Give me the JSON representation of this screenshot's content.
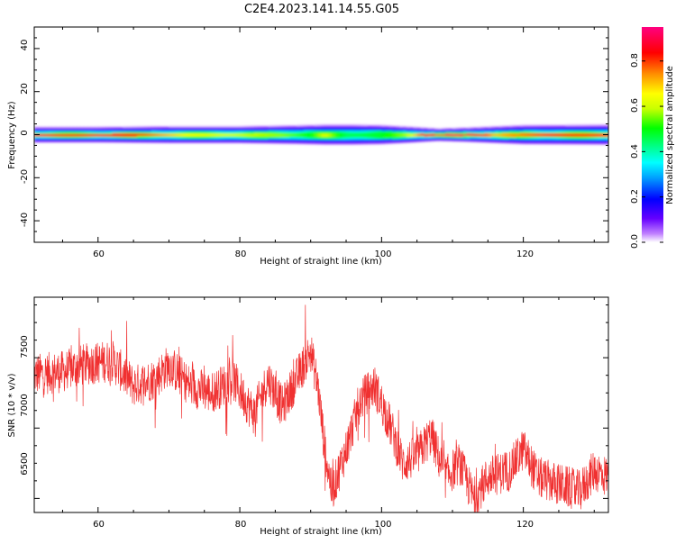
{
  "title": "C2E4.2023.141.14.55.G05",
  "colorbar": {
    "label": "Normalized spectral amplitude",
    "ticks": [
      "0.0",
      "0.2",
      "0.4",
      "0.6",
      "0.8"
    ],
    "tick_values": [
      0.0,
      0.2,
      0.4,
      0.6,
      0.8
    ],
    "range": [
      0,
      0.95
    ]
  },
  "chart_data": [
    {
      "type": "heatmap",
      "xlabel": "Height of straight line (km)",
      "ylabel": "Frequency (Hz)",
      "xlim": [
        51,
        132
      ],
      "ylim": [
        -50,
        50
      ],
      "xticks": [
        60,
        80,
        100,
        120
      ],
      "xtick_labels": [
        "60",
        "80",
        "100",
        "120"
      ],
      "yticks": [
        -40,
        -20,
        0,
        20,
        40
      ],
      "ytick_labels": [
        "-40",
        "-20",
        "0",
        "20",
        "40"
      ],
      "band": {
        "center_hz": 0,
        "half_width_hz": [
          [
            51,
            3.5
          ],
          [
            60,
            3.5
          ],
          [
            70,
            3.8
          ],
          [
            80,
            3.8
          ],
          [
            88,
            4.2
          ],
          [
            92,
            4.5
          ],
          [
            96,
            4.5
          ],
          [
            100,
            4.3
          ],
          [
            104,
            3.6
          ],
          [
            108,
            2.8
          ],
          [
            112,
            3.2
          ],
          [
            120,
            4.3
          ],
          [
            132,
            4.5
          ]
        ],
        "core_amplitude": [
          [
            51,
            0.88
          ],
          [
            60,
            0.85
          ],
          [
            66,
            0.8
          ],
          [
            72,
            0.66
          ],
          [
            80,
            0.6
          ],
          [
            86,
            0.56
          ],
          [
            90,
            0.5
          ],
          [
            92,
            0.62
          ],
          [
            95,
            0.45
          ],
          [
            100,
            0.48
          ],
          [
            104,
            0.6
          ],
          [
            106,
            0.85
          ],
          [
            110,
            0.93
          ],
          [
            113,
            0.88
          ],
          [
            116,
            0.7
          ],
          [
            124,
            0.8
          ],
          [
            132,
            0.78
          ]
        ]
      }
    },
    {
      "type": "line",
      "xlabel": "Height of straight line (km)",
      "ylabel": "SNR (10 * v/v)",
      "xlim": [
        51,
        132
      ],
      "ylim": [
        6400,
        7930
      ],
      "xticks": [
        60,
        80,
        100,
        120
      ],
      "xtick_labels": [
        "60",
        "80",
        "100",
        "120"
      ],
      "yticks": [
        6500,
        7000,
        7500
      ],
      "ytick_labels": [
        "6500",
        "7000",
        "7500"
      ],
      "series": [
        {
          "color": "#f03030",
          "trend": [
            [
              51,
              7380
            ],
            [
              55,
              7400
            ],
            [
              58,
              7450
            ],
            [
              62,
              7480
            ],
            [
              65,
              7300
            ],
            [
              68,
              7350
            ],
            [
              70,
              7450
            ],
            [
              73,
              7300
            ],
            [
              76,
              7250
            ],
            [
              79,
              7350
            ],
            [
              82,
              7100
            ],
            [
              84,
              7350
            ],
            [
              86,
              7150
            ],
            [
              88,
              7350
            ],
            [
              90,
              7550
            ],
            [
              91,
              7300
            ],
            [
              92,
              6850
            ],
            [
              93,
              6550
            ],
            [
              95,
              6850
            ],
            [
              97,
              7200
            ],
            [
              99,
              7300
            ],
            [
              101,
              7050
            ],
            [
              103,
              6750
            ],
            [
              105,
              6800
            ],
            [
              107,
              6950
            ],
            [
              109,
              6650
            ],
            [
              111,
              6750
            ],
            [
              113,
              6500
            ],
            [
              115,
              6650
            ],
            [
              118,
              6700
            ],
            [
              120,
              6850
            ],
            [
              122,
              6650
            ],
            [
              125,
              6600
            ],
            [
              128,
              6550
            ],
            [
              130,
              6700
            ],
            [
              132,
              6650
            ]
          ],
          "noise_amplitude": 150
        }
      ]
    }
  ]
}
